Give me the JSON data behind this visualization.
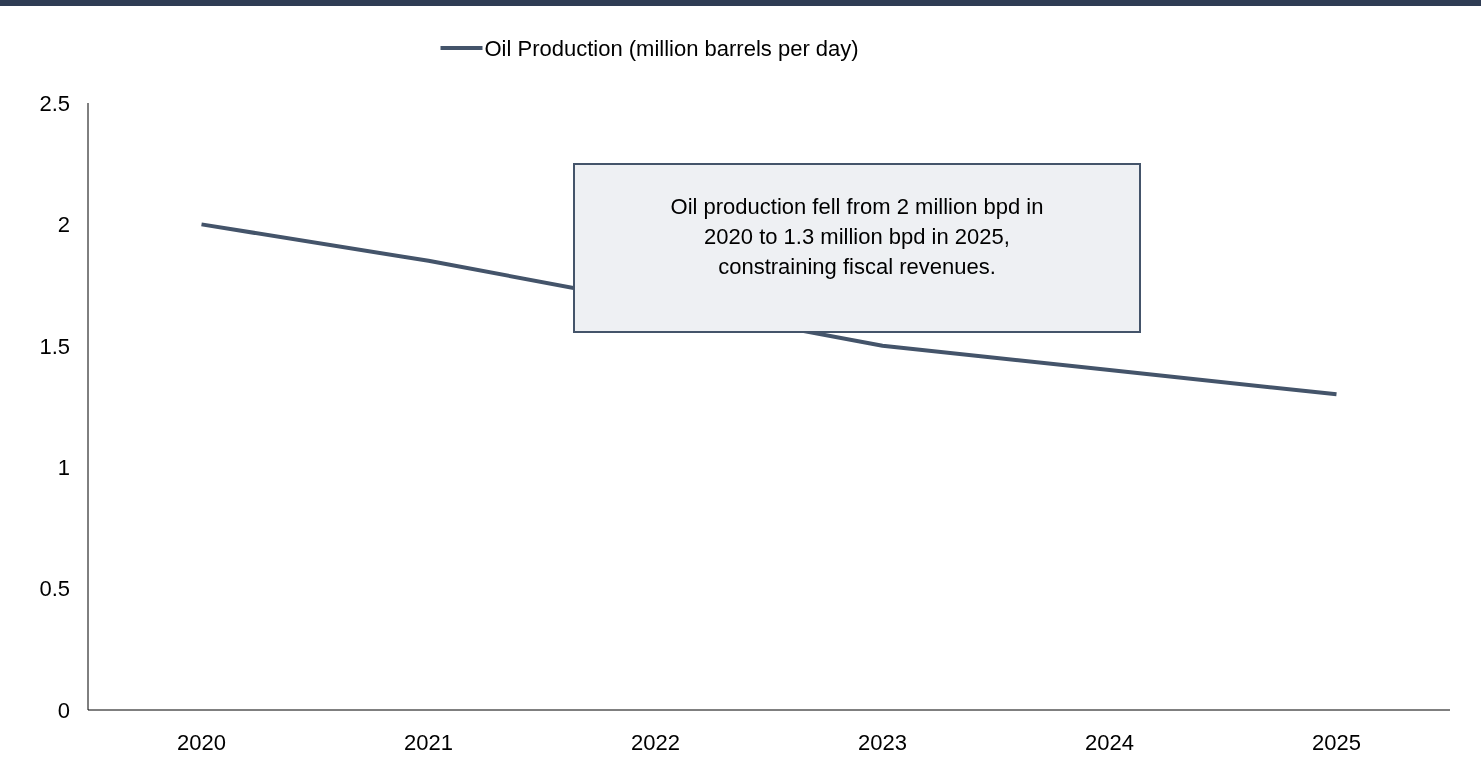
{
  "chart_data": {
    "type": "line",
    "categories": [
      "2020",
      "2021",
      "2022",
      "2023",
      "2024",
      "2025"
    ],
    "series": [
      {
        "name": "Oil Production (million barrels per day)",
        "color": "#44546a",
        "values": [
          2.0,
          1.85,
          null,
          1.5,
          1.4,
          1.3
        ]
      }
    ],
    "ylim": [
      0,
      2.5
    ],
    "yticks": [
      0,
      0.5,
      1,
      1.5,
      2,
      2.5
    ],
    "grid": false,
    "legend": "top",
    "marker": "none",
    "line_style": "solid",
    "annotations": [
      "Oil production fell from 2 million bpd in 2020 to 1.3 million bpd in 2025, constraining fiscal revenues."
    ]
  }
}
